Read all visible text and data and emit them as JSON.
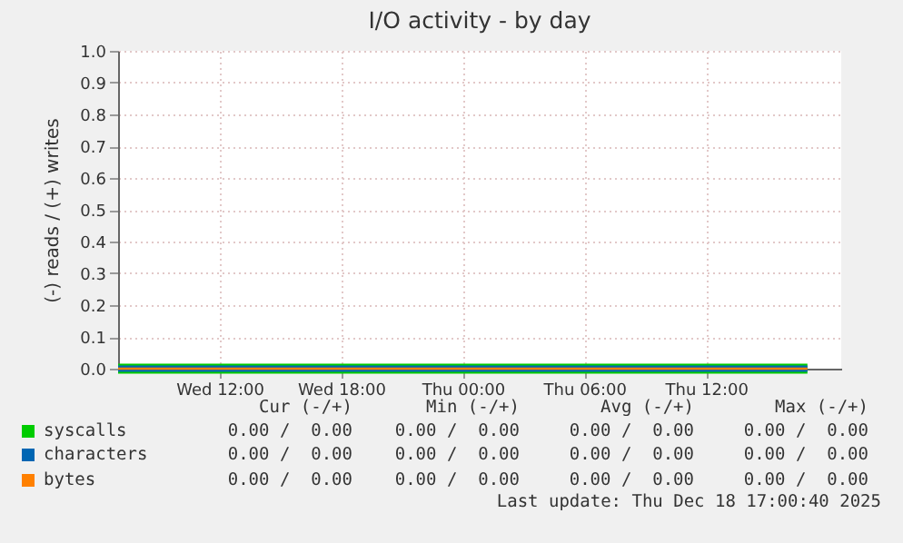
{
  "chart_data": {
    "type": "line",
    "title": "I/O activity - by day",
    "ylabel": "(-) reads / (+) writes",
    "x": [
      "2025-12-17T07:00",
      "2025-12-18T17:00"
    ],
    "series": [
      {
        "name": "syscalls",
        "color": "#00cc00",
        "values": [
          0,
          0
        ]
      },
      {
        "name": "characters",
        "color": "#0066b3",
        "values": [
          0,
          0
        ]
      },
      {
        "name": "bytes",
        "color": "#ff8000",
        "values": [
          0,
          0
        ]
      }
    ],
    "xlim": [
      "2025-12-17T07:00",
      "2025-12-18T18:40"
    ],
    "xticks": [
      {
        "value": "2025-12-17T12:00",
        "label": "Wed 12:00"
      },
      {
        "value": "2025-12-17T18:00",
        "label": "Wed 18:00"
      },
      {
        "value": "2025-12-18T00:00",
        "label": "Thu 00:00"
      },
      {
        "value": "2025-12-18T06:00",
        "label": "Thu 06:00"
      },
      {
        "value": "2025-12-18T12:00",
        "label": "Thu 12:00"
      }
    ],
    "ylim": [
      0,
      1
    ],
    "yticks": [
      {
        "value": 0,
        "label": "0.0"
      },
      {
        "value": 0.1,
        "label": "0.1"
      },
      {
        "value": 0.2,
        "label": "0.2"
      },
      {
        "value": 0.3,
        "label": "0.3"
      },
      {
        "value": 0.4,
        "label": "0.4"
      },
      {
        "value": 0.5,
        "label": "0.5"
      },
      {
        "value": 0.6,
        "label": "0.6"
      },
      {
        "value": 0.7,
        "label": "0.7"
      },
      {
        "value": 0.8,
        "label": "0.8"
      },
      {
        "value": 0.9,
        "label": "0.9"
      },
      {
        "value": 1,
        "label": "1.0"
      }
    ],
    "grid": true,
    "legend": "bottom",
    "annotations": [
      "Cur (-/+)",
      "Min (-/+)",
      "Avg (-/+)",
      "Max (-/+)",
      "0.00 /  0.00",
      "0.00 /  0.00",
      "0.00 /  0.00",
      "0.00 /  0.00",
      "0.00 /  0.00",
      "0.00 /  0.00",
      "0.00 /  0.00",
      "0.00 /  0.00",
      "0.00 /  0.00",
      "0.00 /  0.00",
      "0.00 /  0.00",
      "0.00 /  0.00",
      "Last update: Thu Dec 18 17:00:40 2025"
    ]
  }
}
